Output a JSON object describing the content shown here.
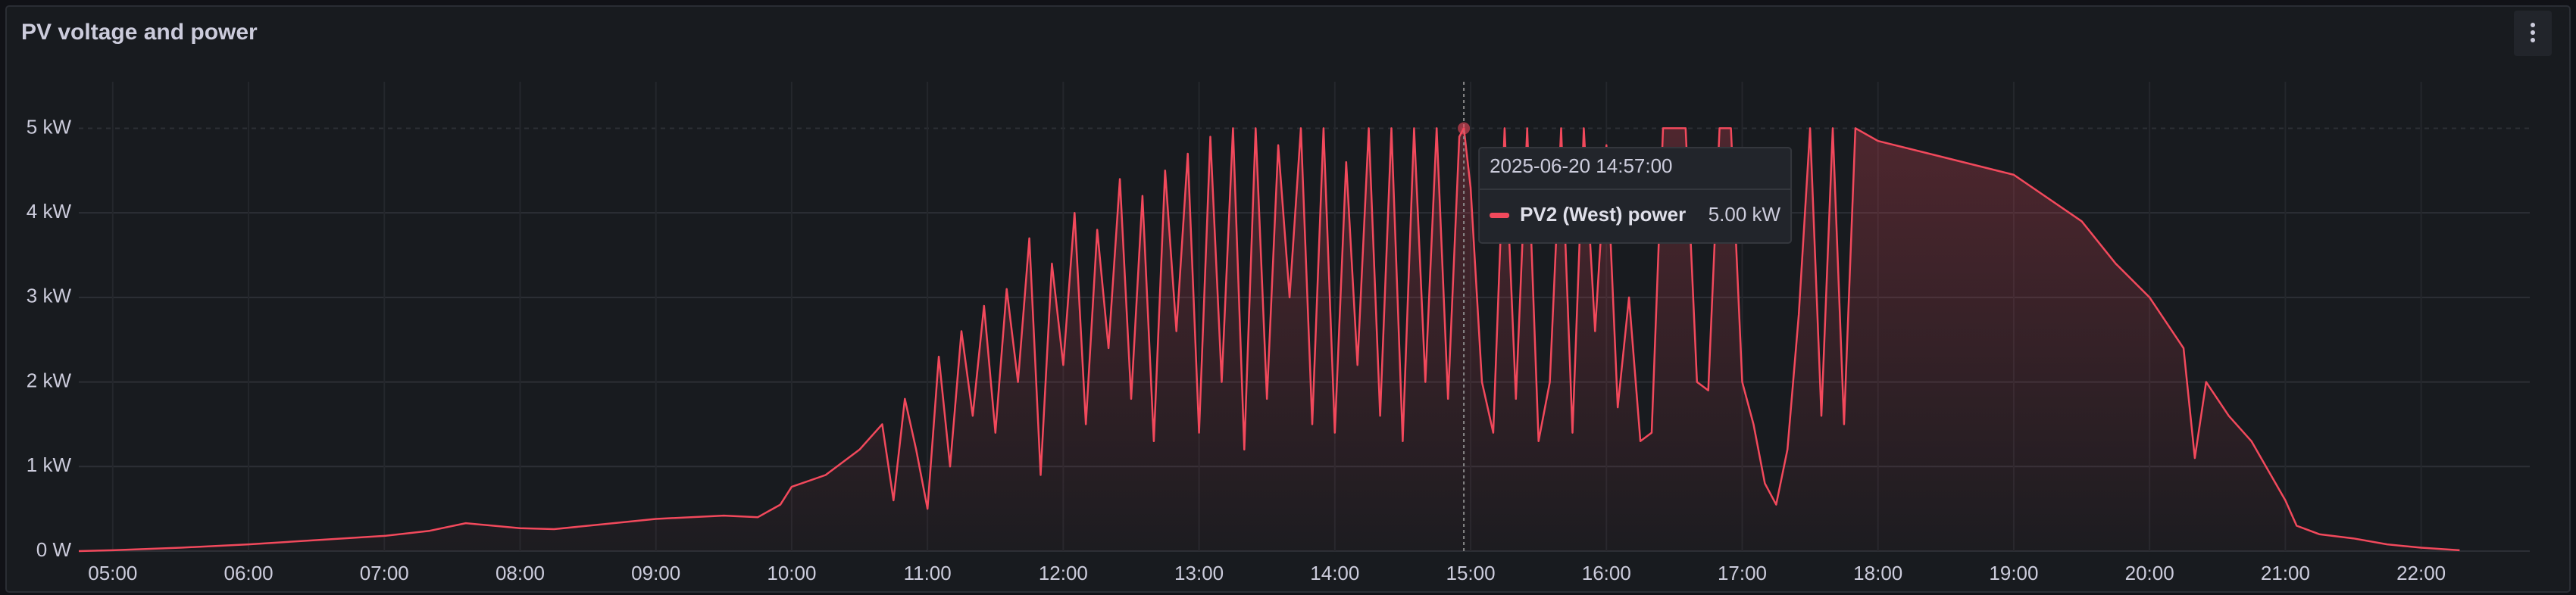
{
  "chart_data": {
    "type": "line",
    "title": "PV voltage and power",
    "x": [
      "04:45",
      "05:00",
      "05:30",
      "06:00",
      "06:30",
      "07:00",
      "07:20",
      "07:36",
      "08:00",
      "08:15",
      "08:30",
      "09:00",
      "09:30",
      "09:45",
      "09:55",
      "10:00",
      "10:15",
      "10:30",
      "10:40",
      "10:45",
      "10:50",
      "10:55",
      "11:00",
      "11:05",
      "11:10",
      "11:15",
      "11:20",
      "11:25",
      "11:30",
      "11:35",
      "11:40",
      "11:45",
      "11:50",
      "11:55",
      "12:00",
      "12:05",
      "12:10",
      "12:15",
      "12:20",
      "12:25",
      "12:30",
      "12:35",
      "12:40",
      "12:45",
      "12:50",
      "12:55",
      "13:00",
      "13:05",
      "13:10",
      "13:15",
      "13:20",
      "13:25",
      "13:30",
      "13:35",
      "13:40",
      "13:45",
      "13:50",
      "13:55",
      "14:00",
      "14:05",
      "14:10",
      "14:15",
      "14:20",
      "14:25",
      "14:30",
      "14:35",
      "14:40",
      "14:45",
      "14:50",
      "14:55",
      "14:57",
      "15:00",
      "15:05",
      "15:10",
      "15:15",
      "15:20",
      "15:25",
      "15:30",
      "15:35",
      "15:40",
      "15:45",
      "15:50",
      "15:55",
      "16:00",
      "16:05",
      "16:10",
      "16:15",
      "16:20",
      "16:25",
      "16:30",
      "16:35",
      "16:40",
      "16:45",
      "16:50",
      "16:55",
      "17:00",
      "17:05",
      "17:10",
      "17:15",
      "17:20",
      "17:25",
      "17:30",
      "17:35",
      "17:40",
      "17:45",
      "17:50",
      "18:00",
      "18:30",
      "19:00",
      "19:30",
      "19:45",
      "20:00",
      "20:15",
      "20:20",
      "20:25",
      "20:35",
      "20:45",
      "21:00",
      "21:05",
      "21:15",
      "21:30",
      "21:45",
      "22:00",
      "22:17"
    ],
    "series": [
      {
        "name": "PV2 (West) power",
        "color": "#f2495c",
        "values": [
          0,
          0.01,
          0.04,
          0.08,
          0.13,
          0.18,
          0.24,
          0.33,
          0.27,
          0.26,
          0.3,
          0.38,
          0.42,
          0.4,
          0.55,
          0.76,
          0.9,
          1.2,
          1.5,
          0.6,
          1.8,
          1.2,
          0.5,
          2.3,
          1.0,
          2.6,
          1.6,
          2.9,
          1.4,
          3.1,
          2.0,
          3.7,
          0.9,
          3.4,
          2.2,
          4.0,
          1.5,
          3.8,
          2.4,
          4.4,
          1.8,
          4.2,
          1.3,
          4.5,
          2.6,
          4.7,
          1.4,
          4.9,
          2.0,
          5.0,
          1.2,
          5.0,
          1.8,
          4.8,
          3.0,
          5.0,
          1.5,
          5.0,
          1.4,
          4.6,
          2.2,
          5.0,
          1.6,
          5.0,
          1.3,
          5.0,
          2.0,
          5.0,
          1.8,
          4.9,
          5.0,
          4.3,
          2.0,
          1.4,
          5.0,
          1.8,
          5.0,
          1.3,
          2.0,
          5.0,
          1.4,
          5.0,
          2.6,
          4.8,
          1.7,
          3.0,
          1.3,
          1.4,
          5.0,
          5.0,
          5.0,
          2.0,
          1.9,
          5.0,
          5.0,
          2.0,
          1.5,
          0.8,
          0.55,
          1.2,
          2.8,
          5.0,
          1.6,
          5.0,
          1.5,
          5.0,
          4.85,
          4.65,
          4.45,
          3.9,
          3.4,
          3.0,
          2.4,
          1.1,
          2.0,
          1.6,
          1.3,
          0.6,
          0.3,
          0.2,
          0.15,
          0.08,
          0.04,
          0.01
        ]
      }
    ],
    "xlim": [
      "04:45",
      "22:48"
    ],
    "xticks": [
      "05:00",
      "06:00",
      "07:00",
      "08:00",
      "09:00",
      "10:00",
      "11:00",
      "12:00",
      "13:00",
      "14:00",
      "15:00",
      "16:00",
      "17:00",
      "18:00",
      "19:00",
      "20:00",
      "21:00",
      "22:00"
    ],
    "ylim": [
      0,
      5.55
    ],
    "yticks": [
      {
        "value": 0,
        "label": "0 W"
      },
      {
        "value": 1,
        "label": "1 kW"
      },
      {
        "value": 2,
        "label": "2 kW"
      },
      {
        "value": 3,
        "label": "3 kW"
      },
      {
        "value": 4,
        "label": "4 kW"
      },
      {
        "value": 5,
        "label": "5 kW"
      }
    ],
    "grid": true,
    "tooltip": {
      "time": "2025-06-20 14:57:00",
      "x": "14:57",
      "value": 5.0,
      "value_label": "5.00 kW"
    }
  }
}
